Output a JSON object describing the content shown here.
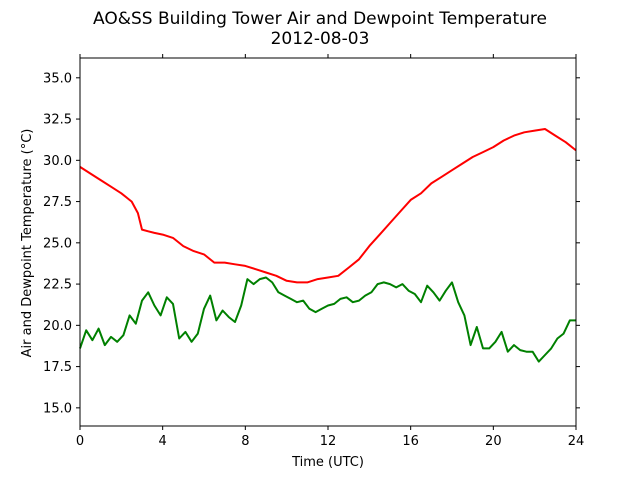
{
  "chart_data": {
    "type": "line",
    "title": "AO&SS Building Tower Air and Dewpoint Temperature",
    "subtitle": "2012-08-03",
    "xlabel": "Time (UTC)",
    "ylabel": "Air and Dewpoint Temperature (°C)",
    "xlim": [
      0,
      24
    ],
    "ylim": [
      13.9,
      36.2
    ],
    "x_ticks": [
      0,
      4,
      8,
      12,
      16,
      20,
      24
    ],
    "x_tick_labels": [
      "0",
      "4",
      "8",
      "12",
      "16",
      "20",
      "24"
    ],
    "y_ticks": [
      15.0,
      17.5,
      20.0,
      22.5,
      25.0,
      27.5,
      30.0,
      32.5,
      35.0
    ],
    "y_tick_labels": [
      "15.0",
      "17.5",
      "20.0",
      "22.5",
      "25.0",
      "27.5",
      "30.0",
      "32.5",
      "35.0"
    ],
    "grid": false,
    "legend": "none",
    "series": [
      {
        "color": "#ff0000",
        "x": [
          0,
          0.5,
          1,
          1.5,
          2,
          2.5,
          2.8,
          3,
          3.3,
          3.6,
          4,
          4.5,
          5,
          5.5,
          6,
          6.5,
          7,
          7.5,
          8,
          8.5,
          9,
          9.5,
          10,
          10.5,
          11,
          11.5,
          12,
          12.5,
          13,
          13.5,
          14,
          14.5,
          15,
          15.5,
          16,
          16.5,
          17,
          17.5,
          18,
          18.5,
          19,
          19.5,
          20,
          20.5,
          21,
          21.5,
          22,
          22.5,
          23,
          23.5,
          24
        ],
        "values": [
          29.6,
          29.2,
          28.8,
          28.4,
          28.0,
          27.5,
          26.8,
          25.8,
          25.7,
          25.6,
          25.5,
          25.3,
          24.8,
          24.5,
          24.3,
          23.8,
          23.8,
          23.7,
          23.6,
          23.4,
          23.2,
          23.0,
          22.7,
          22.6,
          22.6,
          22.8,
          22.9,
          23.0,
          23.5,
          24.0,
          24.8,
          25.5,
          26.2,
          26.9,
          27.6,
          28.0,
          28.6,
          29.0,
          29.4,
          29.8,
          30.2,
          30.5,
          30.8,
          31.2,
          31.5,
          31.7,
          31.8,
          31.9,
          31.5,
          31.1,
          30.6
        ]
      },
      {
        "color": "#008000",
        "x": [
          0,
          0.3,
          0.6,
          0.9,
          1.2,
          1.5,
          1.8,
          2.1,
          2.4,
          2.7,
          3.0,
          3.3,
          3.6,
          3.9,
          4.2,
          4.5,
          4.8,
          5.1,
          5.4,
          5.7,
          6.0,
          6.3,
          6.6,
          6.9,
          7.2,
          7.5,
          7.8,
          8.1,
          8.4,
          8.7,
          9.0,
          9.3,
          9.6,
          9.9,
          10.2,
          10.5,
          10.8,
          11.1,
          11.4,
          11.7,
          12.0,
          12.3,
          12.6,
          12.9,
          13.2,
          13.5,
          13.8,
          14.1,
          14.4,
          14.7,
          15.0,
          15.3,
          15.6,
          15.9,
          16.2,
          16.5,
          16.8,
          17.1,
          17.4,
          17.7,
          18.0,
          18.3,
          18.6,
          18.9,
          19.2,
          19.5,
          19.8,
          20.1,
          20.4,
          20.7,
          21.0,
          21.3,
          21.6,
          21.9,
          22.2,
          22.5,
          22.8,
          23.1,
          23.4,
          23.7,
          24.0
        ],
        "values": [
          18.6,
          19.7,
          19.1,
          19.8,
          18.8,
          19.3,
          19.0,
          19.4,
          20.6,
          20.1,
          21.5,
          22.0,
          21.2,
          20.6,
          21.7,
          21.3,
          19.2,
          19.6,
          19.0,
          19.5,
          21.0,
          21.8,
          20.3,
          20.9,
          20.5,
          20.2,
          21.2,
          22.8,
          22.5,
          22.8,
          22.9,
          22.6,
          22.0,
          21.8,
          21.6,
          21.4,
          21.5,
          21.0,
          20.8,
          21.0,
          21.2,
          21.3,
          21.6,
          21.7,
          21.4,
          21.5,
          21.8,
          22.0,
          22.5,
          22.6,
          22.5,
          22.3,
          22.5,
          22.1,
          21.9,
          21.4,
          22.4,
          22.0,
          21.5,
          22.1,
          22.6,
          21.4,
          20.6,
          18.8,
          19.9,
          18.6,
          18.6,
          19.0,
          19.6,
          18.4,
          18.8,
          18.5,
          18.4,
          18.4,
          17.8,
          18.2,
          18.6,
          19.2,
          19.5,
          20.3,
          20.3
        ]
      }
    ]
  }
}
